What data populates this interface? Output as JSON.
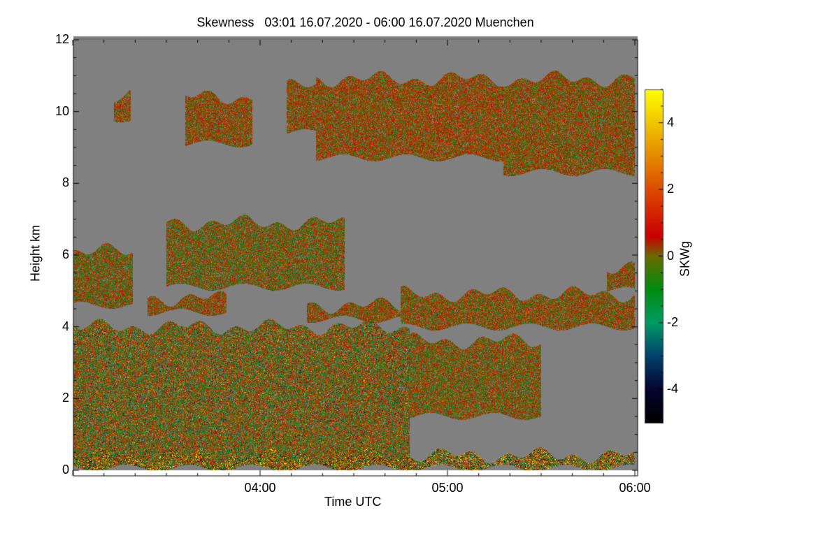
{
  "chart_data": {
    "type": "heatmap",
    "title": "Skewness   03:01 16.07.2020 - 06:00 16.07.2020 Muenchen",
    "xlabel": "Time UTC",
    "ylabel": "Height km",
    "colorbar_label": "SKWg",
    "xlim_hours": [
      3.0,
      6.0
    ],
    "ylim": [
      0,
      12
    ],
    "xticks": [
      {
        "v": 4.0,
        "label": "04:00"
      },
      {
        "v": 5.0,
        "label": "05:00"
      },
      {
        "v": 6.0,
        "label": "06:00"
      }
    ],
    "yticks": [
      0,
      2,
      4,
      6,
      8,
      10,
      12
    ],
    "colorbar_range": [
      -5,
      5
    ],
    "colorbar_ticks": [
      -4,
      -2,
      0,
      2,
      4
    ],
    "background_color": "#808080",
    "colormap": [
      {
        "v": -5,
        "c": "#000000"
      },
      {
        "v": -4,
        "c": "#050530"
      },
      {
        "v": -3,
        "c": "#00406a"
      },
      {
        "v": -2,
        "c": "#009a64"
      },
      {
        "v": -1,
        "c": "#008c10"
      },
      {
        "v": 0,
        "c": "#6a6a00"
      },
      {
        "v": 0.6,
        "c": "#c80000"
      },
      {
        "v": 2,
        "c": "#dc4a00"
      },
      {
        "v": 3,
        "c": "#e38a00"
      },
      {
        "v": 5,
        "c": "#ffff00"
      }
    ],
    "regions": [
      {
        "t": [
          3.22,
          3.31
        ],
        "h": [
          9.8,
          10.4
        ],
        "mean": 0.3,
        "spread": 1.0
      },
      {
        "t": [
          3.6,
          3.96
        ],
        "h": [
          9.1,
          10.4
        ],
        "mean": 0.3,
        "spread": 1.0
      },
      {
        "t": [
          4.14,
          4.3
        ],
        "h": [
          9.4,
          10.7
        ],
        "mean": 0.3,
        "spread": 1.0
      },
      {
        "t": [
          4.3,
          5.3
        ],
        "h": [
          8.7,
          10.9
        ],
        "mean": 0.3,
        "spread": 1.0
      },
      {
        "t": [
          5.3,
          6.0
        ],
        "h": [
          8.3,
          10.9
        ],
        "mean": 0.2,
        "spread": 1.0
      },
      {
        "t": [
          3.5,
          4.45
        ],
        "h": [
          5.1,
          6.9
        ],
        "mean": 0.0,
        "spread": 1.2
      },
      {
        "t": [
          3.0,
          3.32
        ],
        "h": [
          4.6,
          6.1
        ],
        "mean": 0.0,
        "spread": 1.1
      },
      {
        "t": [
          3.4,
          3.82
        ],
        "h": [
          4.4,
          4.8
        ],
        "mean": 0.2,
        "spread": 1.0
      },
      {
        "t": [
          4.25,
          4.8
        ],
        "h": [
          4.2,
          4.6
        ],
        "mean": 0.2,
        "spread": 1.0
      },
      {
        "t": [
          4.75,
          6.0
        ],
        "h": [
          4.0,
          4.9
        ],
        "mean": 0.2,
        "spread": 1.1
      },
      {
        "t": [
          5.85,
          6.0
        ],
        "h": [
          5.0,
          5.7
        ],
        "mean": 0.2,
        "spread": 1.0
      },
      {
        "t": [
          3.0,
          4.8
        ],
        "h": [
          0.1,
          4.0
        ],
        "mean": 0.0,
        "spread": 1.6
      },
      {
        "t": [
          4.8,
          5.5
        ],
        "h": [
          1.5,
          3.6
        ],
        "mean": 0.1,
        "spread": 1.2
      },
      {
        "t": [
          3.0,
          6.0
        ],
        "h": [
          0.05,
          0.4
        ],
        "mean": 0.3,
        "spread": 2.5
      }
    ]
  }
}
